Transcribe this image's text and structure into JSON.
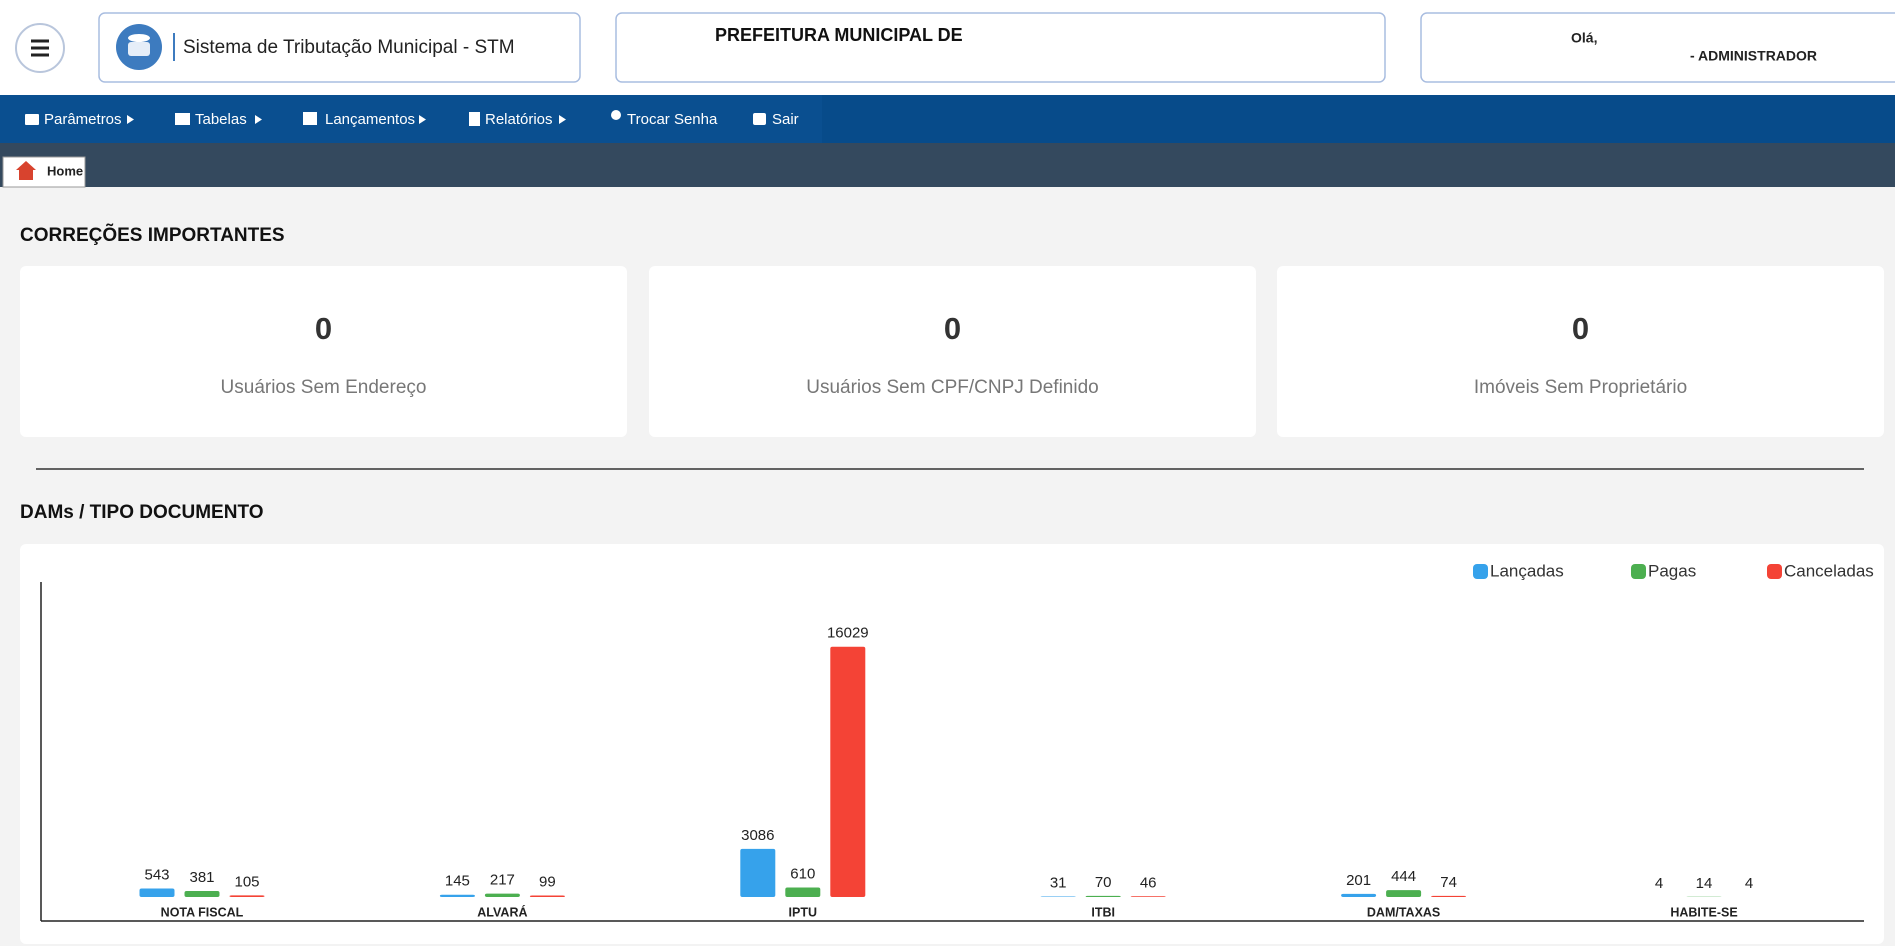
{
  "header": {
    "app_title": "Sistema de Tributação Municipal - STM",
    "org_title": "PREFEITURA MUNICIPAL DE",
    "greeting": "Olá,",
    "user_role": "- ADMINISTRADOR"
  },
  "menu": [
    "Parâmetros",
    "Tabelas",
    "Lançamentos",
    "Relatórios",
    "Trocar Senha",
    "Sair"
  ],
  "tabs": [
    "Home"
  ],
  "corrections": {
    "title": "CORREÇÕES IMPORTANTES",
    "cards": [
      {
        "value": 0,
        "label": "Usuários Sem Endereço"
      },
      {
        "value": 0,
        "label": "Usuários Sem CPF/CNPJ Definido"
      },
      {
        "value": 0,
        "label": "Imóveis Sem Proprietário"
      }
    ]
  },
  "chart_data": {
    "type": "bar",
    "title": "DAMs / TIPO DOCUMENTO",
    "categories": [
      "NOTA FISCAL",
      "ALVARÁ",
      "IPTU",
      "ITBI",
      "DAM/TAXAS",
      "HABITE-SE"
    ],
    "series": [
      {
        "name": "Lançadas",
        "color": "#36a2eb",
        "values": [
          543,
          145,
          3086,
          31,
          201,
          4
        ]
      },
      {
        "name": "Pagas",
        "color": "#4caf50",
        "values": [
          381,
          217,
          610,
          70,
          444,
          14
        ]
      },
      {
        "name": "Canceladas",
        "color": "#f44336",
        "values": [
          105,
          99,
          16029,
          46,
          74,
          4
        ]
      }
    ],
    "ylim": [
      0,
      18000
    ],
    "legend": "top-right"
  }
}
